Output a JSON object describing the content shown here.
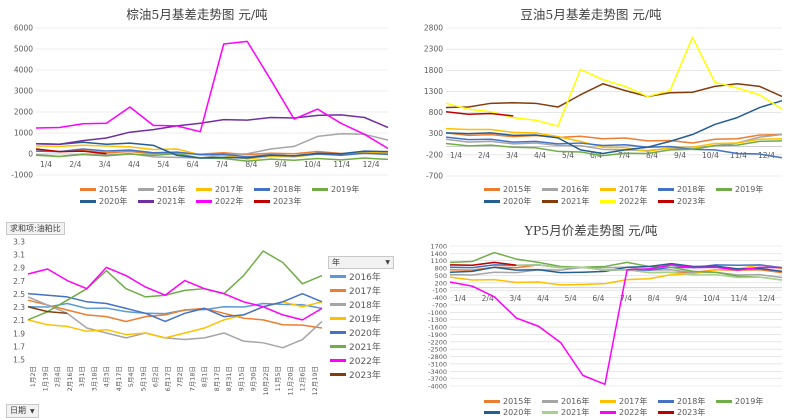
{
  "chart_data": [
    {
      "id": "palm",
      "type": "line",
      "title": "棕油5月基差走势图    元/吨",
      "x_ticks": [
        "1/4",
        "2/4",
        "3/4",
        "4/4",
        "5/4",
        "6/4",
        "7/4",
        "8/4",
        "9/4",
        "10/4",
        "11/4",
        "12/4"
      ],
      "ylim": [
        -1000,
        6000
      ],
      "y_ticks": [
        -1000,
        0,
        1000,
        2000,
        3000,
        4000,
        5000,
        6000
      ],
      "series": [
        {
          "name": "2015年",
          "color": "#ed7d31",
          "values": [
            180,
            150,
            120,
            100,
            80,
            60,
            40,
            30,
            20,
            10,
            0,
            50,
            80,
            60,
            40,
            20
          ]
        },
        {
          "name": "2016年",
          "color": "#a5a5a5",
          "values": [
            -60,
            -80,
            -40,
            0,
            -20,
            -100,
            -200,
            -150,
            -80,
            50,
            200,
            400,
            800,
            1000,
            900,
            700
          ]
        },
        {
          "name": "2017年",
          "color": "#ffc000",
          "values": [
            350,
            400,
            380,
            420,
            300,
            250,
            200,
            0,
            -100,
            -200,
            -150,
            -100,
            -50,
            0,
            50,
            100
          ]
        },
        {
          "name": "2018年",
          "color": "#4472c4",
          "values": [
            100,
            150,
            200,
            180,
            150,
            100,
            50,
            0,
            -50,
            -100,
            -80,
            -60,
            -40,
            -20,
            0,
            20
          ]
        },
        {
          "name": "2019年",
          "color": "#70ad47",
          "values": [
            -100,
            -80,
            -60,
            -50,
            -40,
            -30,
            -20,
            -150,
            -250,
            -300,
            -280,
            -260,
            -250,
            -240,
            -230,
            -220
          ]
        },
        {
          "name": "2020年",
          "color": "#255e91",
          "values": [
            450,
            500,
            520,
            500,
            480,
            450,
            -100,
            -150,
            -200,
            -150,
            -100,
            -50,
            0,
            50,
            100,
            150
          ]
        },
        {
          "name": "2021年",
          "color": "#7030a0",
          "values": [
            450,
            500,
            600,
            800,
            1000,
            1200,
            1300,
            1500,
            1600,
            1650,
            1700,
            1750,
            1800,
            1900,
            1700,
            1300
          ]
        },
        {
          "name": "2022年",
          "color": "#ff00ff",
          "values": [
            1200,
            1300,
            1400,
            1500,
            2200,
            1400,
            1300,
            1100,
            5200,
            5400,
            3500,
            1700,
            2100,
            1500,
            900,
            300
          ]
        },
        {
          "name": "2023年",
          "color": "#c00000",
          "values": [
            200,
            150,
            100,
            50
          ]
        }
      ]
    },
    {
      "id": "soy",
      "type": "line",
      "title": "豆油5月基差走势图    元/吨",
      "x_ticks": [
        "1/4",
        "2/4",
        "3/4",
        "4/4",
        "5/4",
        "6/4",
        "7/4",
        "8/4",
        "9/4",
        "10/4",
        "11/4",
        "12/4"
      ],
      "ylim": [
        -700,
        2800
      ],
      "y_ticks": [
        -700,
        -200,
        300,
        800,
        1300,
        1800,
        2300,
        2800
      ],
      "series": [
        {
          "name": "2015年",
          "color": "#ed7d31",
          "values": [
            300,
            280,
            260,
            250,
            240,
            230,
            220,
            200,
            180,
            150,
            120,
            100,
            150,
            200,
            250,
            300
          ]
        },
        {
          "name": "2016年",
          "color": "#a5a5a5",
          "values": [
            150,
            120,
            100,
            80,
            60,
            40,
            0,
            -50,
            -100,
            -80,
            -60,
            -40,
            0,
            100,
            200,
            300
          ]
        },
        {
          "name": "2017年",
          "color": "#ffc000",
          "values": [
            400,
            420,
            380,
            350,
            300,
            250,
            100,
            0,
            -50,
            -100,
            -50,
            0,
            50,
            100,
            150,
            200
          ]
        },
        {
          "name": "2018年",
          "color": "#4472c4",
          "values": [
            200,
            180,
            150,
            120,
            100,
            80,
            60,
            40,
            20,
            0,
            -20,
            -50,
            -100,
            -150,
            -200,
            -250
          ]
        },
        {
          "name": "2019年",
          "color": "#70ad47",
          "values": [
            50,
            30,
            10,
            0,
            -50,
            -100,
            -150,
            -200,
            -180,
            -150,
            -100,
            -50,
            0,
            50,
            100,
            150
          ]
        },
        {
          "name": "2020年",
          "color": "#255e91",
          "values": [
            300,
            320,
            300,
            280,
            250,
            220,
            -100,
            -150,
            -100,
            0,
            100,
            300,
            500,
            700,
            900,
            1100
          ]
        },
        {
          "name": "2021年",
          "color": "#843c0c",
          "values": [
            900,
            950,
            1000,
            1050,
            1000,
            950,
            1200,
            1500,
            1300,
            1200,
            1250,
            1300,
            1400,
            1500,
            1400,
            1200
          ]
        },
        {
          "name": "2022年",
          "color": "#ffff00",
          "values": [
            1000,
            900,
            800,
            700,
            600,
            500,
            1800,
            1600,
            1400,
            1200,
            1300,
            2600,
            1500,
            1400,
            1200,
            900
          ]
        },
        {
          "name": "2023年",
          "color": "#c00000",
          "values": [
            800,
            780,
            760,
            740
          ]
        }
      ]
    },
    {
      "id": "ratio",
      "type": "line",
      "title": "",
      "header_label": "求和项:油粕比",
      "x_ticks": [
        "1月2日",
        "1月19日",
        "2月4日",
        "2月16日",
        "3月1日",
        "3月18日",
        "4月3日",
        "4月17日",
        "5月4日",
        "5月19日",
        "6月2日",
        "6月17日",
        "7月2日",
        "7月18日",
        "8月1日",
        "8月17日",
        "8月31日",
        "9月15日",
        "9月30日",
        "10月22日",
        "11月5日",
        "11月20日",
        "12月6日",
        "12月19日"
      ],
      "ylim": [
        1.5,
        3.3
      ],
      "y_ticks": [
        1.5,
        1.7,
        1.9,
        2.1,
        2.3,
        2.5,
        2.7,
        2.9,
        3.1,
        3.3
      ],
      "legend_title": "年",
      "filter_label": "日期",
      "series": [
        {
          "name": "2016年",
          "color": "#5b9bd5",
          "values": [
            2.3,
            2.32,
            2.35,
            2.3,
            2.28,
            2.25,
            2.2,
            2.22,
            2.25,
            2.28,
            2.3,
            2.32,
            2.35,
            2.36,
            2.33,
            2.3
          ]
        },
        {
          "name": "2017年",
          "color": "#ed7d31",
          "values": [
            2.4,
            2.35,
            2.25,
            2.2,
            2.15,
            2.1,
            2.15,
            2.2,
            2.25,
            2.3,
            2.2,
            2.15,
            2.1,
            2.05,
            2.02,
            2.0
          ]
        },
        {
          "name": "2018年",
          "color": "#a5a5a5",
          "values": [
            2.45,
            2.35,
            2.2,
            2.0,
            1.9,
            1.85,
            1.9,
            1.85,
            1.8,
            1.85,
            1.9,
            1.8,
            1.75,
            1.7,
            1.8,
            2.1
          ]
        },
        {
          "name": "2019年",
          "color": "#ffc000",
          "values": [
            2.1,
            2.05,
            2.0,
            1.95,
            1.95,
            1.9,
            1.9,
            1.85,
            1.9,
            2.0,
            2.1,
            2.2,
            2.3,
            2.4,
            2.3,
            2.4
          ]
        },
        {
          "name": "2020年",
          "color": "#4472c4",
          "values": [
            2.5,
            2.5,
            2.45,
            2.4,
            2.35,
            2.3,
            2.2,
            2.1,
            2.2,
            2.3,
            2.15,
            2.2,
            2.3,
            2.4,
            2.5,
            2.4
          ]
        },
        {
          "name": "2021年",
          "color": "#70ad47",
          "values": [
            2.1,
            2.25,
            2.4,
            2.6,
            2.85,
            2.6,
            2.45,
            2.5,
            2.55,
            2.6,
            2.5,
            2.8,
            3.15,
            3.0,
            2.65,
            2.8
          ]
        },
        {
          "name": "2022年",
          "color": "#ff00ff",
          "values": [
            2.8,
            2.9,
            2.7,
            2.6,
            2.9,
            2.8,
            2.6,
            2.5,
            2.7,
            2.6,
            2.5,
            2.4,
            2.3,
            2.2,
            2.1,
            2.3
          ]
        },
        {
          "name": "2023年",
          "color": "#843c0c",
          "values": [
            2.3,
            2.25,
            2.2
          ]
        }
      ]
    },
    {
      "id": "yp",
      "type": "line",
      "title": "YP5月价差走势图    元/吨",
      "x_ticks": [
        "1/4",
        "2/4",
        "3/4",
        "4/4",
        "5/4",
        "6/4",
        "7/4",
        "8/4",
        "9/4",
        "10/4",
        "11/4",
        "12/4"
      ],
      "ylim": [
        -4000,
        1700
      ],
      "y_ticks": [
        1700,
        1400,
        1100,
        800,
        500,
        200,
        -100,
        -400,
        -700,
        -1000,
        -1300,
        -1600,
        -1900,
        -2200,
        -2500,
        -2800,
        -3100,
        -3400,
        -3700,
        -4000
      ],
      "series": [
        {
          "name": "2015年",
          "color": "#ed7d31",
          "values": [
            700,
            750,
            800,
            850,
            900,
            850,
            800,
            750,
            700,
            650,
            600,
            650,
            700,
            750,
            700,
            650
          ]
        },
        {
          "name": "2016年",
          "color": "#a5a5a5",
          "values": [
            500,
            550,
            600,
            650,
            700,
            750,
            800,
            850,
            800,
            750,
            700,
            650,
            600,
            550,
            500,
            450
          ]
        },
        {
          "name": "2017年",
          "color": "#ffc000",
          "values": [
            400,
            350,
            300,
            250,
            200,
            150,
            100,
            200,
            300,
            400,
            500,
            600,
            700,
            800,
            900,
            800
          ]
        },
        {
          "name": "2018年",
          "color": "#4472c4",
          "values": [
            800,
            850,
            900,
            950,
            900,
            850,
            800,
            750,
            700,
            750,
            800,
            850,
            900,
            950,
            900,
            850
          ]
        },
        {
          "name": "2019年",
          "color": "#70ad47",
          "values": [
            1000,
            1100,
            1400,
            1200,
            1000,
            900,
            800,
            900,
            1000,
            900,
            800,
            700,
            600,
            500,
            400,
            350
          ]
        },
        {
          "name": "2020年",
          "color": "#255e91",
          "values": [
            600,
            700,
            800,
            750,
            700,
            650,
            600,
            700,
            800,
            900,
            950,
            900,
            850,
            800,
            750,
            700
          ]
        },
        {
          "name": "2021年",
          "color": "#a9d18e",
          "values": [
            900,
            950,
            1000,
            950,
            900,
            850,
            800,
            750,
            700,
            650,
            600,
            550,
            500,
            450,
            400,
            350
          ]
        },
        {
          "name": "2022年",
          "color": "#ff00ff",
          "values": [
            200,
            100,
            -400,
            -1200,
            -1600,
            -2200,
            -3600,
            -3900,
            700,
            800,
            900,
            850,
            800,
            750,
            800,
            850
          ]
        },
        {
          "name": "2023年",
          "color": "#c00000",
          "values": [
            900,
            950,
            1000,
            950
          ]
        }
      ]
    }
  ]
}
